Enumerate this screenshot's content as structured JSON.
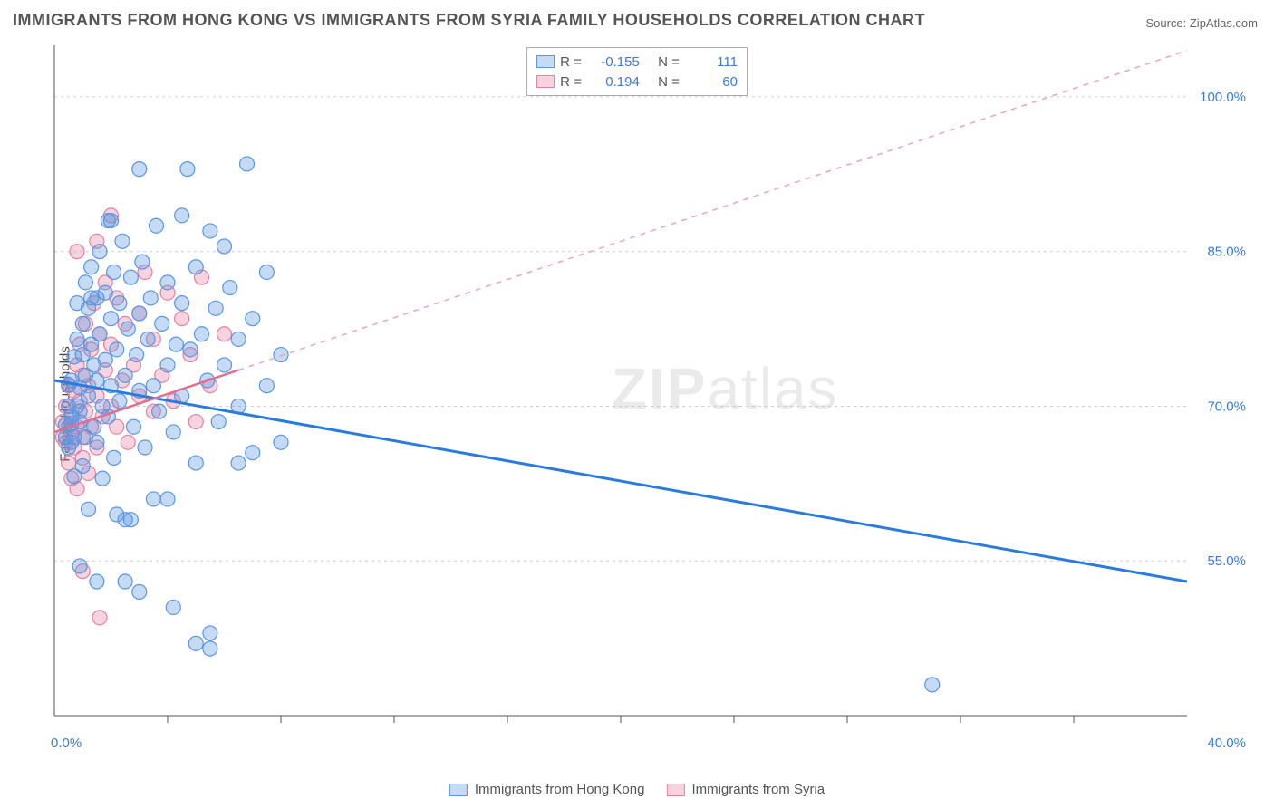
{
  "title": "IMMIGRANTS FROM HONG KONG VS IMMIGRANTS FROM SYRIA FAMILY HOUSEHOLDS CORRELATION CHART",
  "source_label": "Source: ",
  "source_name": "ZipAtlas.com",
  "watermark_a": "ZIP",
  "watermark_b": "atlas",
  "ylabel": "Family Households",
  "chart": {
    "type": "scatter-with-trendlines",
    "xlim": [
      0.0,
      40.0
    ],
    "ylim": [
      40.0,
      105.0
    ],
    "x_ticks": [
      0.0,
      40.0
    ],
    "x_tick_labels": [
      "0.0%",
      "40.0%"
    ],
    "x_minor_ticks": [
      4,
      8,
      12,
      16,
      20,
      24,
      28,
      32,
      36
    ],
    "y_grid": [
      55.0,
      70.0,
      85.0,
      100.0
    ],
    "y_tick_labels": [
      "55.0%",
      "70.0%",
      "85.0%",
      "100.0%"
    ],
    "background_color": "#ffffff",
    "grid_color": "#cccccc",
    "axis_color": "#555555",
    "label_color": "#3a7bd5",
    "marker_radius": 8,
    "marker_opacity": 0.35,
    "series": [
      {
        "name": "Immigrants from Hong Kong",
        "color_fill": "rgba(90,150,225,0.35)",
        "color_stroke": "#5a96e1",
        "R": -0.155,
        "N": 111,
        "trend": {
          "x1": 0.0,
          "y1": 72.5,
          "x2": 40.0,
          "y2": 53.0,
          "color": "#2b7bdc",
          "width": 3,
          "dash": "none"
        },
        "points": [
          [
            0.4,
            67.0
          ],
          [
            0.4,
            68.2
          ],
          [
            0.5,
            66.0
          ],
          [
            0.5,
            70.0
          ],
          [
            0.5,
            72.1
          ],
          [
            0.6,
            68.3
          ],
          [
            0.6,
            69.0
          ],
          [
            0.6,
            66.5
          ],
          [
            0.6,
            72.5
          ],
          [
            0.7,
            74.8
          ],
          [
            0.7,
            67.0
          ],
          [
            0.7,
            63.2
          ],
          [
            0.8,
            70.0
          ],
          [
            0.8,
            76.5
          ],
          [
            0.8,
            80.0
          ],
          [
            0.9,
            71.8
          ],
          [
            0.9,
            68.5
          ],
          [
            0.9,
            69.5
          ],
          [
            1.0,
            75.0
          ],
          [
            1.0,
            78.0
          ],
          [
            1.0,
            64.2
          ],
          [
            1.1,
            82.0
          ],
          [
            1.1,
            73.0
          ],
          [
            1.1,
            67.0
          ],
          [
            1.2,
            71.0
          ],
          [
            1.2,
            79.5
          ],
          [
            1.2,
            60.0
          ],
          [
            1.3,
            76.0
          ],
          [
            1.3,
            83.5
          ],
          [
            1.4,
            68.0
          ],
          [
            1.4,
            74.0
          ],
          [
            1.5,
            80.5
          ],
          [
            1.5,
            66.5
          ],
          [
            1.5,
            72.5
          ],
          [
            1.6,
            77.0
          ],
          [
            1.6,
            85.0
          ],
          [
            1.7,
            70.0
          ],
          [
            1.7,
            63.0
          ],
          [
            1.8,
            81.0
          ],
          [
            1.8,
            74.5
          ],
          [
            1.9,
            88.0
          ],
          [
            1.9,
            69.0
          ],
          [
            2.0,
            78.5
          ],
          [
            2.0,
            72.0
          ],
          [
            2.1,
            83.0
          ],
          [
            2.1,
            65.0
          ],
          [
            2.2,
            75.5
          ],
          [
            2.3,
            80.0
          ],
          [
            2.3,
            70.5
          ],
          [
            2.4,
            86.0
          ],
          [
            2.5,
            73.0
          ],
          [
            2.5,
            59.0
          ],
          [
            2.6,
            77.5
          ],
          [
            2.7,
            82.5
          ],
          [
            2.8,
            68.0
          ],
          [
            2.9,
            75.0
          ],
          [
            3.0,
            79.0
          ],
          [
            3.0,
            71.5
          ],
          [
            3.1,
            84.0
          ],
          [
            3.2,
            66.0
          ],
          [
            3.3,
            76.5
          ],
          [
            3.4,
            80.5
          ],
          [
            3.5,
            72.0
          ],
          [
            3.6,
            87.5
          ],
          [
            3.7,
            69.5
          ],
          [
            3.8,
            78.0
          ],
          [
            4.0,
            74.0
          ],
          [
            4.0,
            82.0
          ],
          [
            4.2,
            67.5
          ],
          [
            4.3,
            76.0
          ],
          [
            4.5,
            80.0
          ],
          [
            4.5,
            71.0
          ],
          [
            4.7,
            93.0
          ],
          [
            4.8,
            75.5
          ],
          [
            5.0,
            83.5
          ],
          [
            5.0,
            64.5
          ],
          [
            5.2,
            77.0
          ],
          [
            5.4,
            72.5
          ],
          [
            5.5,
            87.0
          ],
          [
            5.7,
            79.5
          ],
          [
            5.8,
            68.5
          ],
          [
            6.0,
            85.5
          ],
          [
            6.0,
            74.0
          ],
          [
            6.2,
            81.5
          ],
          [
            6.5,
            70.0
          ],
          [
            6.5,
            76.5
          ],
          [
            6.8,
            93.5
          ],
          [
            7.0,
            78.5
          ],
          [
            7.0,
            65.5
          ],
          [
            7.5,
            83.0
          ],
          [
            7.5,
            72.0
          ],
          [
            8.0,
            66.5
          ],
          [
            8.0,
            75.0
          ],
          [
            3.0,
            93.0
          ],
          [
            2.0,
            88.0
          ],
          [
            4.5,
            88.5
          ],
          [
            1.3,
            80.5
          ],
          [
            2.5,
            53.0
          ],
          [
            3.0,
            52.0
          ],
          [
            5.0,
            47.0
          ],
          [
            5.5,
            48.0
          ],
          [
            5.5,
            46.5
          ],
          [
            1.5,
            53.0
          ],
          [
            2.2,
            59.5
          ],
          [
            2.7,
            59.0
          ],
          [
            0.9,
            54.5
          ],
          [
            3.5,
            61.0
          ],
          [
            6.5,
            64.5
          ],
          [
            4.2,
            50.5
          ],
          [
            31.0,
            43.0
          ],
          [
            4.0,
            61.0
          ]
        ]
      },
      {
        "name": "Immigrants from Syria",
        "color_fill": "rgba(230,130,160,0.35)",
        "color_stroke": "#e382a0",
        "R": 0.194,
        "N": 60,
        "trend_solid": {
          "x1": 0.0,
          "y1": 67.5,
          "x2": 6.5,
          "y2": 73.5,
          "color": "#e46e8f",
          "width": 2.5
        },
        "trend_dashed": {
          "x1": 6.5,
          "y1": 73.5,
          "x2": 40.0,
          "y2": 104.5,
          "color": "#e9a6b9",
          "width": 1.5,
          "dash": "6 6"
        },
        "points": [
          [
            0.3,
            67.0
          ],
          [
            0.3,
            68.5
          ],
          [
            0.4,
            66.5
          ],
          [
            0.4,
            70.0
          ],
          [
            0.5,
            68.0
          ],
          [
            0.5,
            64.5
          ],
          [
            0.5,
            72.0
          ],
          [
            0.6,
            67.5
          ],
          [
            0.6,
            69.0
          ],
          [
            0.6,
            63.0
          ],
          [
            0.7,
            71.5
          ],
          [
            0.7,
            66.0
          ],
          [
            0.8,
            74.0
          ],
          [
            0.8,
            68.0
          ],
          [
            0.8,
            62.0
          ],
          [
            0.9,
            70.5
          ],
          [
            0.9,
            76.0
          ],
          [
            1.0,
            67.0
          ],
          [
            1.0,
            73.0
          ],
          [
            1.0,
            65.0
          ],
          [
            1.1,
            78.0
          ],
          [
            1.1,
            69.5
          ],
          [
            1.2,
            72.0
          ],
          [
            1.2,
            63.5
          ],
          [
            1.3,
            75.5
          ],
          [
            1.3,
            68.0
          ],
          [
            1.4,
            80.0
          ],
          [
            1.5,
            71.0
          ],
          [
            1.5,
            66.0
          ],
          [
            1.6,
            77.0
          ],
          [
            1.7,
            69.0
          ],
          [
            1.8,
            73.5
          ],
          [
            1.8,
            82.0
          ],
          [
            2.0,
            70.0
          ],
          [
            2.0,
            76.0
          ],
          [
            2.2,
            68.0
          ],
          [
            2.2,
            80.5
          ],
          [
            2.4,
            72.5
          ],
          [
            2.5,
            78.0
          ],
          [
            2.6,
            66.5
          ],
          [
            2.8,
            74.0
          ],
          [
            3.0,
            79.0
          ],
          [
            3.0,
            71.0
          ],
          [
            3.2,
            83.0
          ],
          [
            3.5,
            69.5
          ],
          [
            3.5,
            76.5
          ],
          [
            3.8,
            73.0
          ],
          [
            4.0,
            81.0
          ],
          [
            4.2,
            70.5
          ],
          [
            4.5,
            78.5
          ],
          [
            4.8,
            75.0
          ],
          [
            5.0,
            68.5
          ],
          [
            5.2,
            82.5
          ],
          [
            5.5,
            72.0
          ],
          [
            6.0,
            77.0
          ],
          [
            2.0,
            88.5
          ],
          [
            1.5,
            86.0
          ],
          [
            0.8,
            85.0
          ],
          [
            1.0,
            54.0
          ],
          [
            1.6,
            49.5
          ]
        ]
      }
    ]
  },
  "legend_top": {
    "R_label": "R =",
    "N_label": "N =",
    "rows": [
      {
        "r": "-0.155",
        "n": "111"
      },
      {
        "r": "0.194",
        "n": "60"
      }
    ]
  },
  "legend_bottom": {
    "items": [
      "Immigrants from Hong Kong",
      "Immigrants from Syria"
    ]
  }
}
